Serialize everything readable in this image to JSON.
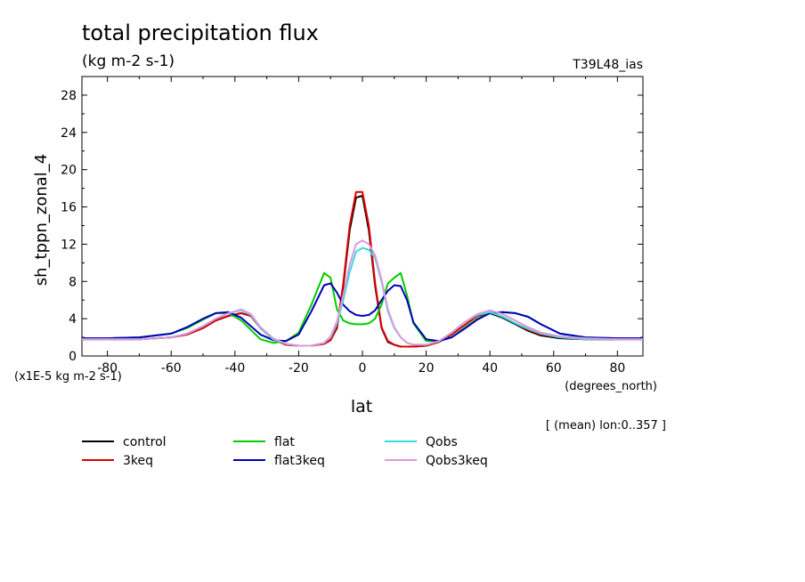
{
  "header": {
    "title": "total precipitation flux",
    "units": "(kg m-2 s-1)",
    "run_label": "T39L48_ias",
    "scale_note": "(x1E-5 kg m-2 s-1)",
    "lon_note": "[ (mean) lon:0..357 ]"
  },
  "chart_data": {
    "type": "line",
    "xlabel": "lat",
    "x_units": "(degrees_north)",
    "ylabel": "sh_tppn_zonal_4",
    "xlim": [
      -88,
      88
    ],
    "ylim": [
      0,
      30
    ],
    "x_ticks": [
      -80,
      -60,
      -40,
      -20,
      0,
      20,
      40,
      60,
      80
    ],
    "y_ticks": [
      0,
      4,
      8,
      12,
      16,
      20,
      24,
      28
    ],
    "x_tick_labels": [
      "-80",
      "-60",
      "-40",
      "-20",
      "0",
      "20",
      "40",
      "60",
      "80"
    ],
    "y_tick_labels": [
      "0",
      "4",
      "8",
      "12",
      "16",
      "20",
      "24",
      "28"
    ],
    "x": [
      -88,
      -80,
      -70,
      -60,
      -55,
      -50,
      -46,
      -42,
      -38,
      -35,
      -32,
      -28,
      -24,
      -20,
      -16,
      -12,
      -10,
      -8,
      -6,
      -4,
      -2,
      0,
      2,
      4,
      6,
      8,
      10,
      12,
      14,
      16,
      20,
      24,
      28,
      32,
      36,
      40,
      44,
      48,
      52,
      56,
      62,
      70,
      80,
      88
    ],
    "series": [
      {
        "name": "control",
        "color": "#000000",
        "values": [
          1.8,
          1.8,
          1.8,
          2.0,
          2.3,
          3.0,
          3.8,
          4.3,
          4.6,
          4.3,
          3.0,
          1.8,
          1.2,
          1.1,
          1.1,
          1.3,
          1.7,
          3.0,
          7.5,
          13.5,
          17.0,
          17.2,
          13.5,
          7.5,
          3.0,
          1.5,
          1.2,
          1.0,
          1.0,
          1.0,
          1.1,
          1.5,
          2.3,
          3.3,
          4.3,
          4.6,
          4.1,
          3.4,
          2.7,
          2.2,
          1.9,
          1.8,
          1.8,
          1.8
        ]
      },
      {
        "name": "3keq",
        "color": "#dd0000",
        "values": [
          1.8,
          1.8,
          1.8,
          2.0,
          2.3,
          3.0,
          3.8,
          4.3,
          4.6,
          4.3,
          3.0,
          1.8,
          1.2,
          1.1,
          1.1,
          1.3,
          1.7,
          3.1,
          7.8,
          14.0,
          17.6,
          17.6,
          14.0,
          7.8,
          3.1,
          1.6,
          1.2,
          1.0,
          1.0,
          1.0,
          1.1,
          1.5,
          2.3,
          3.3,
          4.3,
          4.7,
          4.2,
          3.5,
          2.8,
          2.3,
          2.0,
          1.8,
          1.8,
          1.8
        ]
      },
      {
        "name": "flat",
        "color": "#00cc00",
        "values": [
          1.9,
          1.9,
          2.0,
          2.4,
          3.0,
          3.9,
          4.6,
          4.6,
          3.8,
          2.8,
          1.8,
          1.4,
          1.6,
          2.5,
          5.5,
          8.9,
          8.4,
          5.0,
          3.8,
          3.5,
          3.4,
          3.4,
          3.5,
          4.0,
          5.5,
          7.8,
          8.4,
          8.9,
          6.5,
          3.5,
          1.6,
          1.6,
          2.0,
          3.0,
          4.0,
          4.6,
          4.7,
          4.6,
          4.2,
          3.4,
          2.4,
          2.0,
          1.9,
          1.9
        ]
      },
      {
        "name": "flat3keq",
        "color": "#0000bb",
        "values": [
          1.9,
          1.9,
          2.0,
          2.4,
          3.1,
          4.0,
          4.6,
          4.7,
          4.1,
          3.2,
          2.3,
          1.7,
          1.6,
          2.3,
          4.8,
          7.6,
          7.8,
          6.8,
          5.5,
          4.8,
          4.4,
          4.3,
          4.4,
          4.9,
          6.0,
          7.0,
          7.6,
          7.5,
          6.0,
          3.6,
          1.8,
          1.6,
          2.0,
          2.9,
          3.9,
          4.6,
          4.7,
          4.6,
          4.2,
          3.4,
          2.4,
          2.0,
          1.9,
          1.9
        ]
      },
      {
        "name": "Qobs",
        "color": "#33dddd",
        "values": [
          1.8,
          1.8,
          1.8,
          2.0,
          2.4,
          3.2,
          4.0,
          4.6,
          4.9,
          4.4,
          3.0,
          1.8,
          1.3,
          1.1,
          1.1,
          1.4,
          2.0,
          3.5,
          6.0,
          9.0,
          11.2,
          11.6,
          11.4,
          10.5,
          8.0,
          4.8,
          3.0,
          2.0,
          1.4,
          1.2,
          1.2,
          1.6,
          2.5,
          3.6,
          4.4,
          4.7,
          4.2,
          3.5,
          2.9,
          2.4,
          2.0,
          1.8,
          1.8,
          1.8
        ]
      },
      {
        "name": "Qobs3keq",
        "color": "#dd99dd",
        "values": [
          1.8,
          1.8,
          1.8,
          2.0,
          2.4,
          3.2,
          4.0,
          4.6,
          5.0,
          4.5,
          3.1,
          1.9,
          1.3,
          1.1,
          1.1,
          1.4,
          2.1,
          3.7,
          6.5,
          9.8,
          12.0,
          12.4,
          12.0,
          10.8,
          8.2,
          5.0,
          3.1,
          2.0,
          1.4,
          1.2,
          1.2,
          1.6,
          2.5,
          3.6,
          4.5,
          4.9,
          4.5,
          3.8,
          3.1,
          2.5,
          2.1,
          1.9,
          1.8,
          1.8
        ]
      }
    ]
  }
}
